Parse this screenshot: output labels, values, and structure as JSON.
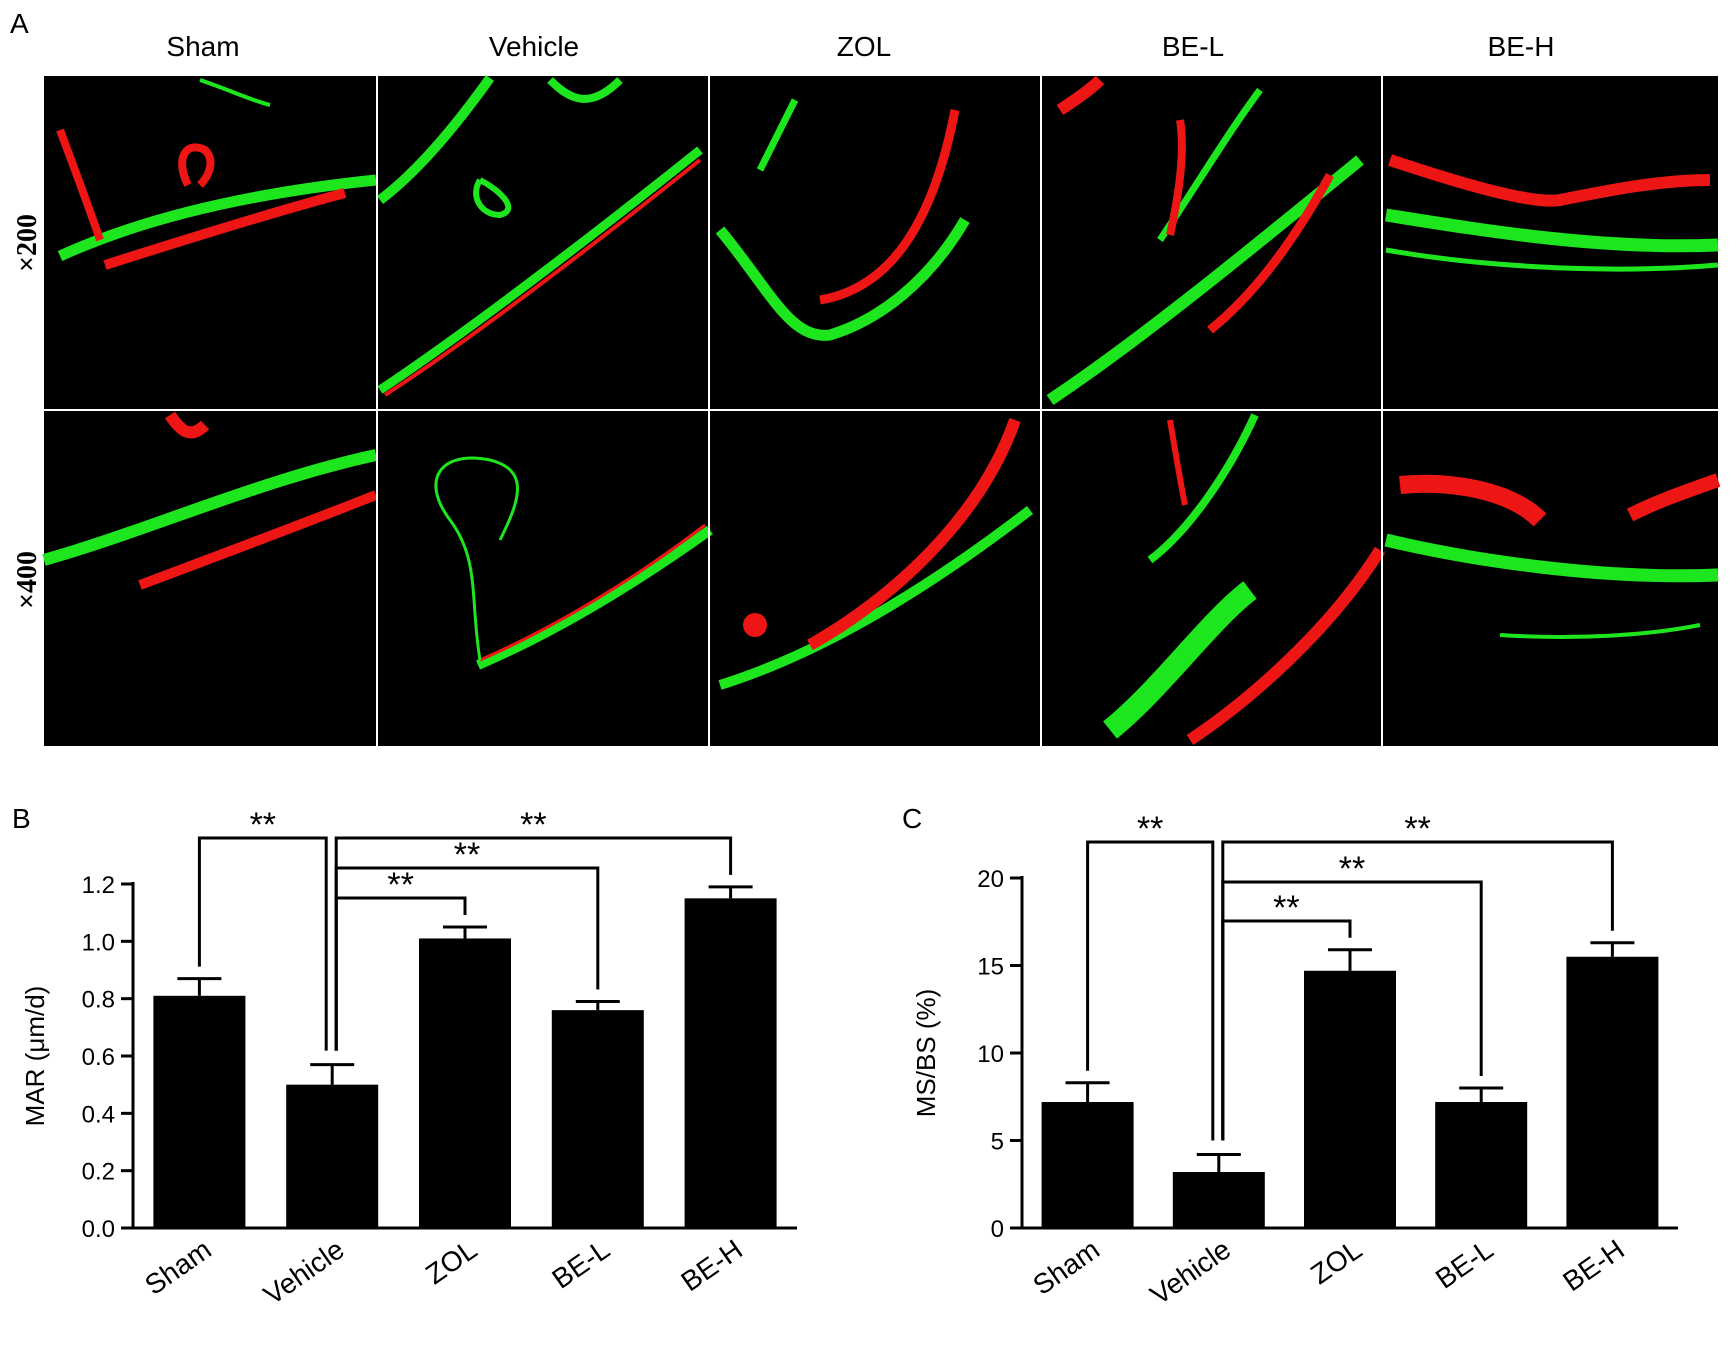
{
  "figure": {
    "panel_a": {
      "label": "A",
      "columns": [
        "Sham",
        "Vehicle",
        "ZOL",
        "BE-L",
        "BE-H"
      ],
      "rows": [
        "×200",
        "×400"
      ]
    }
  },
  "colors": {
    "bar": "#000000",
    "fluor_green": "#1ee61e",
    "fluor_red": "#ee1515",
    "background": "#ffffff",
    "micrograph_bg": "#000000"
  },
  "chart_data": [
    {
      "panel": "B",
      "type": "bar",
      "categories": [
        "Sham",
        "Vehicle",
        "ZOL",
        "BE-L",
        "BE-H"
      ],
      "values": [
        0.81,
        0.5,
        1.01,
        0.76,
        1.15
      ],
      "errors": [
        0.06,
        0.07,
        0.04,
        0.03,
        0.04
      ],
      "ylabel": "MAR (μm/d)",
      "ylim": [
        0,
        1.2
      ],
      "yticks": [
        "0.0",
        "0.2",
        "0.4",
        "0.6",
        "0.8",
        "1.0",
        "1.2"
      ],
      "significance": [
        {
          "from": "Sham",
          "to": "Vehicle",
          "label": "**"
        },
        {
          "from": "Vehicle",
          "to": "ZOL",
          "label": "**"
        },
        {
          "from": "Vehicle",
          "to": "BE-L",
          "label": "**"
        },
        {
          "from": "Vehicle",
          "to": "BE-H",
          "label": "**"
        }
      ]
    },
    {
      "panel": "C",
      "type": "bar",
      "categories": [
        "Sham",
        "Vehicle",
        "ZOL",
        "BE-L",
        "BE-H"
      ],
      "values": [
        7.2,
        3.2,
        14.7,
        7.2,
        15.5
      ],
      "errors": [
        1.1,
        1.0,
        1.2,
        0.8,
        0.8
      ],
      "ylabel": "MS/BS (%)",
      "ylim": [
        0,
        20
      ],
      "yticks": [
        "0",
        "5",
        "10",
        "15",
        "20"
      ],
      "significance": [
        {
          "from": "Sham",
          "to": "Vehicle",
          "label": "**"
        },
        {
          "from": "Vehicle",
          "to": "ZOL",
          "label": "**"
        },
        {
          "from": "Vehicle",
          "to": "BE-L",
          "label": "**"
        },
        {
          "from": "Vehicle",
          "to": "BE-H",
          "label": "**"
        }
      ]
    }
  ]
}
